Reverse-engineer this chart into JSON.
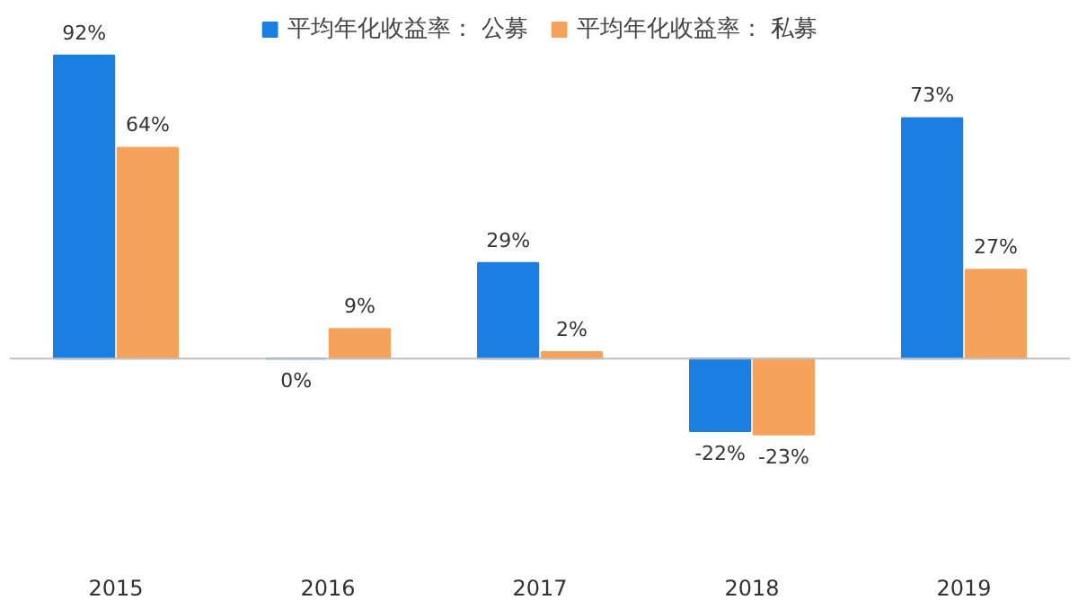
{
  "chart_data": {
    "type": "bar",
    "categories": [
      "2015",
      "2016",
      "2017",
      "2018",
      "2019"
    ],
    "series": [
      {
        "name": "平均年化收益率： 公募",
        "color": "#1a7fe0",
        "values": [
          92,
          0,
          29,
          -22,
          73
        ],
        "value_labels": [
          "92%",
          "0%",
          "29%",
          "-22%",
          "73%"
        ]
      },
      {
        "name": "平均年化收益率： 私募",
        "color": "#f5a25d",
        "values": [
          64,
          9,
          2,
          -23,
          27
        ],
        "value_labels": [
          "64%",
          "9%",
          "2%",
          "-23%",
          "27%"
        ]
      }
    ],
    "legend": "top"
  }
}
